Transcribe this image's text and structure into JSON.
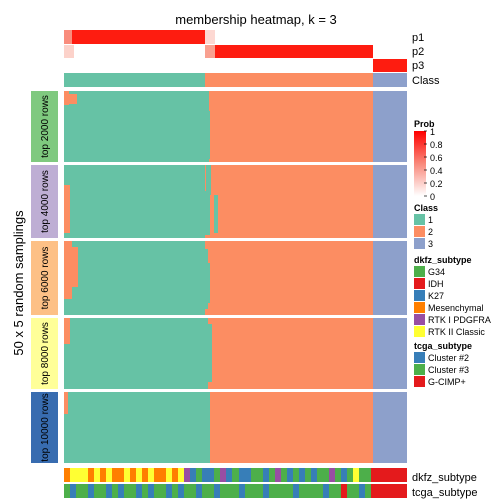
{
  "chart_data": {
    "type": "heatmap",
    "title": "membership heatmap, k = 3",
    "ylabel": "50 x 5 random samplings",
    "top_tracks": [
      "p1",
      "p2",
      "p3",
      "Class"
    ],
    "bottom_tracks": [
      "dkfz_subtype",
      "tcga_subtype"
    ],
    "row_groups": [
      {
        "label": "top 2000 rows",
        "color": "#7FC97F"
      },
      {
        "label": "top 4000 rows",
        "color": "#BEAED4"
      },
      {
        "label": "top 6000 rows",
        "color": "#FDC086"
      },
      {
        "label": "top 8000 rows",
        "color": "#FFFF99"
      },
      {
        "label": "top 10000 rows",
        "color": "#386CB0"
      }
    ],
    "class_fractions": [
      0.41,
      0.49,
      0.1
    ],
    "class_colors": {
      "1": "#66C2A5",
      "2": "#FC8D62",
      "3": "#8DA0CB"
    },
    "legend": {
      "prob": {
        "title": "Prob",
        "ticks": [
          "1",
          "0.8",
          "0.6",
          "0.4",
          "0.2",
          "0"
        ]
      },
      "class": {
        "title": "Class",
        "items": [
          {
            "label": "1",
            "color": "#66C2A5"
          },
          {
            "label": "2",
            "color": "#FC8D62"
          },
          {
            "label": "3",
            "color": "#8DA0CB"
          }
        ]
      },
      "dkfz_subtype": {
        "title": "dkfz_subtype",
        "items": [
          {
            "label": "G34",
            "color": "#4DAF4A"
          },
          {
            "label": "IDH",
            "color": "#E41A1C"
          },
          {
            "label": "K27",
            "color": "#377EB8"
          },
          {
            "label": "Mesenchymal",
            "color": "#FF7F00"
          },
          {
            "label": "RTK I PDGFRA",
            "color": "#984EA3"
          },
          {
            "label": "RTK II Classic",
            "color": "#FFFF33"
          }
        ]
      },
      "tcga_subtype": {
        "title": "tcga_subtype",
        "items": [
          {
            "label": "Cluster #2",
            "color": "#377EB8"
          },
          {
            "label": "Cluster #3",
            "color": "#4DAF4A"
          },
          {
            "label": "G-CIMP+",
            "color": "#E41A1C"
          }
        ]
      }
    }
  }
}
